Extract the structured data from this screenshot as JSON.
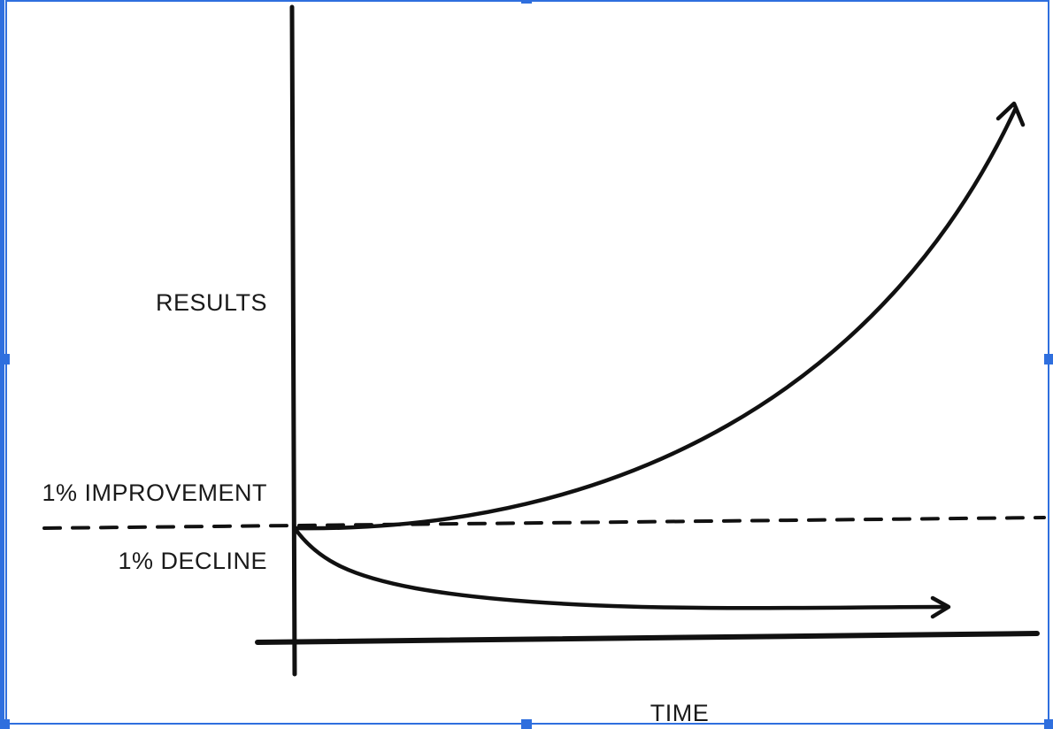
{
  "labels": {
    "y_axis": "RESULTS",
    "improvement": "1% IMPROVEMENT",
    "decline": "1% DECLINE",
    "x_axis": "TIME"
  }
}
